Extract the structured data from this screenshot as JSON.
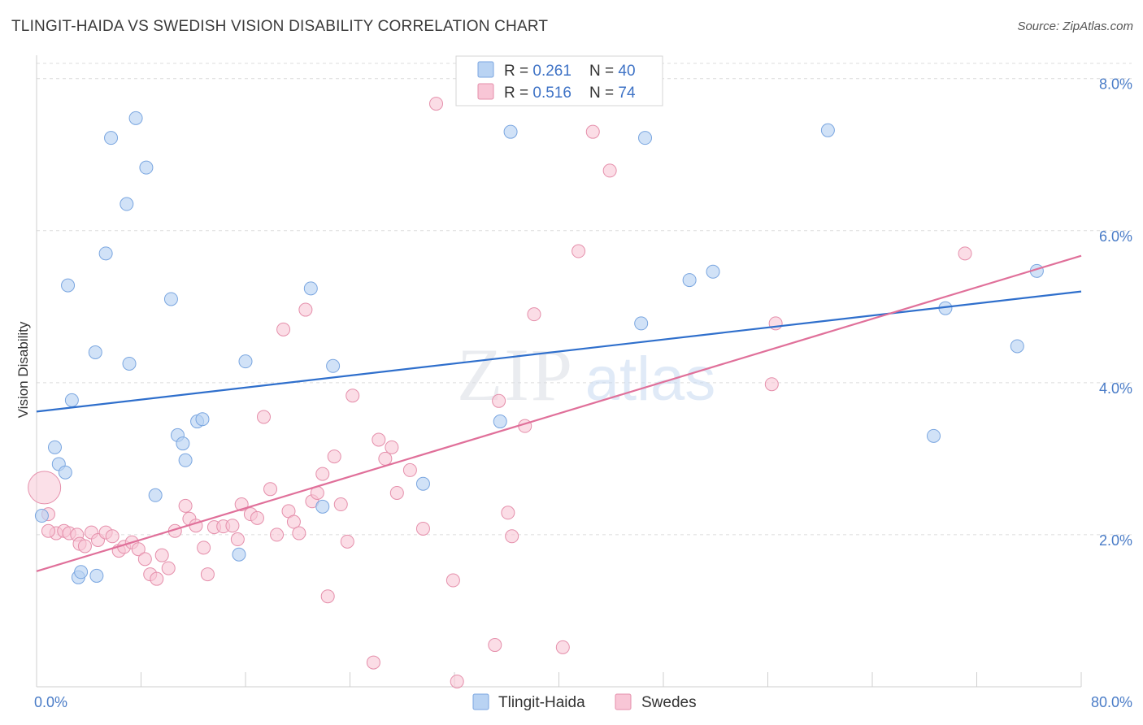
{
  "header": {
    "title": "TLINGIT-HAIDA VS SWEDISH VISION DISABILITY CORRELATION CHART",
    "source": "Source: ZipAtlas.com"
  },
  "watermark": {
    "zip": "ZIP",
    "atlas": "atlas"
  },
  "colors": {
    "blue_fill": "#b9d3f3",
    "blue_stroke": "#7aa6e0",
    "blue_line": "#2f6fcc",
    "pink_fill": "#f8c6d6",
    "pink_stroke": "#e58fab",
    "pink_line": "#e0709a",
    "value_text": "#3f73c6",
    "label_text": "#333333"
  },
  "legend": {
    "rows": [
      {
        "r_label": "R = ",
        "r_value": "0.261",
        "n_label": "N = ",
        "n_value": "40"
      },
      {
        "r_label": "R = ",
        "r_value": "0.516",
        "n_label": "N = ",
        "n_value": "74"
      }
    ]
  },
  "chart_data": {
    "type": "scatter",
    "xlabel": "",
    "ylabel": "Vision Disability",
    "xlim": [
      0,
      80
    ],
    "ylim": [
      0,
      8.2
    ],
    "x_tick_labels": [
      "0.0%",
      "80.0%"
    ],
    "y_ticks": [
      2,
      4,
      6,
      8
    ],
    "y_tick_labels": [
      "2.0%",
      "4.0%",
      "6.0%",
      "8.0%"
    ],
    "grid": true,
    "legend_position": "top-center",
    "series": [
      {
        "name": "Tlingit-Haida",
        "trend": [
          [
            0,
            3.62
          ],
          [
            80,
            5.2
          ]
        ],
        "points": [
          [
            1.4,
            3.15
          ],
          [
            1.7,
            2.93
          ],
          [
            2.2,
            2.82
          ],
          [
            2.4,
            5.28
          ],
          [
            2.7,
            3.77
          ],
          [
            3.2,
            1.44
          ],
          [
            3.4,
            1.51
          ],
          [
            4.5,
            4.4
          ],
          [
            4.6,
            1.46
          ],
          [
            5.3,
            5.7
          ],
          [
            5.7,
            7.22
          ],
          [
            6.9,
            6.35
          ],
          [
            7.1,
            4.25
          ],
          [
            7.6,
            7.48
          ],
          [
            8.4,
            6.83
          ],
          [
            9.1,
            2.52
          ],
          [
            10.3,
            5.1
          ],
          [
            10.8,
            3.31
          ],
          [
            11.2,
            3.2
          ],
          [
            11.4,
            2.98
          ],
          [
            12.3,
            3.49
          ],
          [
            12.7,
            3.52
          ],
          [
            15.5,
            1.74
          ],
          [
            16.0,
            4.28
          ],
          [
            21.0,
            5.24
          ],
          [
            21.9,
            2.37
          ],
          [
            22.7,
            4.22
          ],
          [
            29.6,
            2.67
          ],
          [
            35.5,
            3.49
          ],
          [
            36.3,
            7.3
          ],
          [
            46.3,
            4.78
          ],
          [
            46.6,
            7.22
          ],
          [
            50.0,
            5.35
          ],
          [
            51.8,
            5.46
          ],
          [
            60.6,
            7.32
          ],
          [
            68.7,
            3.3
          ],
          [
            69.6,
            4.98
          ],
          [
            75.1,
            4.48
          ],
          [
            76.6,
            5.47
          ],
          [
            0.4,
            2.25
          ]
        ]
      },
      {
        "name": "Swedes",
        "trend": [
          [
            0,
            1.52
          ],
          [
            80,
            5.67
          ]
        ],
        "points": [
          [
            0.6,
            2.62
          ],
          [
            0.9,
            2.27
          ],
          [
            1.5,
            2.02
          ],
          [
            2.1,
            2.05
          ],
          [
            2.5,
            2.02
          ],
          [
            3.1,
            2.0
          ],
          [
            3.3,
            1.88
          ],
          [
            3.7,
            1.85
          ],
          [
            4.2,
            2.03
          ],
          [
            4.7,
            1.93
          ],
          [
            5.3,
            2.03
          ],
          [
            5.8,
            1.98
          ],
          [
            6.3,
            1.79
          ],
          [
            6.7,
            1.84
          ],
          [
            7.3,
            1.9
          ],
          [
            7.8,
            1.81
          ],
          [
            8.3,
            1.68
          ],
          [
            8.7,
            1.48
          ],
          [
            9.2,
            1.42
          ],
          [
            9.6,
            1.73
          ],
          [
            10.1,
            1.56
          ],
          [
            10.6,
            2.05
          ],
          [
            11.4,
            2.38
          ],
          [
            11.7,
            2.21
          ],
          [
            12.2,
            2.12
          ],
          [
            12.8,
            1.83
          ],
          [
            13.1,
            1.48
          ],
          [
            13.6,
            2.1
          ],
          [
            14.3,
            2.11
          ],
          [
            15.0,
            2.12
          ],
          [
            15.4,
            1.94
          ],
          [
            15.7,
            2.4
          ],
          [
            16.4,
            2.27
          ],
          [
            16.9,
            2.22
          ],
          [
            17.4,
            3.55
          ],
          [
            17.9,
            2.6
          ],
          [
            18.4,
            2.0
          ],
          [
            18.9,
            4.7
          ],
          [
            19.3,
            2.31
          ],
          [
            19.7,
            2.17
          ],
          [
            20.1,
            2.02
          ],
          [
            20.6,
            4.96
          ],
          [
            21.1,
            2.44
          ],
          [
            21.5,
            2.55
          ],
          [
            21.9,
            2.8
          ],
          [
            22.3,
            1.19
          ],
          [
            22.8,
            3.03
          ],
          [
            23.3,
            2.4
          ],
          [
            23.8,
            1.91
          ],
          [
            24.2,
            3.83
          ],
          [
            25.8,
            0.32
          ],
          [
            26.2,
            3.25
          ],
          [
            26.7,
            3.0
          ],
          [
            27.2,
            3.15
          ],
          [
            27.6,
            2.55
          ],
          [
            28.6,
            2.85
          ],
          [
            29.6,
            2.08
          ],
          [
            30.6,
            7.67
          ],
          [
            31.9,
            1.4
          ],
          [
            32.2,
            0.07
          ],
          [
            35.1,
            0.55
          ],
          [
            35.4,
            3.76
          ],
          [
            36.1,
            2.29
          ],
          [
            36.4,
            1.98
          ],
          [
            37.4,
            3.43
          ],
          [
            38.1,
            4.9
          ],
          [
            40.3,
            0.52
          ],
          [
            41.5,
            5.73
          ],
          [
            42.6,
            7.3
          ],
          [
            43.9,
            6.79
          ],
          [
            56.3,
            3.98
          ],
          [
            56.6,
            4.78
          ],
          [
            71.1,
            5.7
          ],
          [
            0.9,
            2.05
          ]
        ]
      }
    ]
  }
}
